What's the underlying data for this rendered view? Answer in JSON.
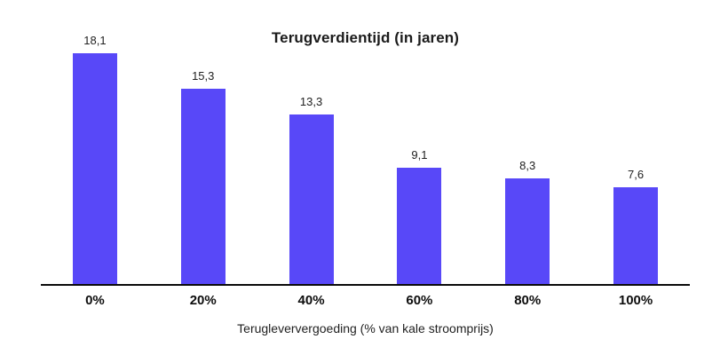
{
  "chart_data": {
    "type": "bar",
    "title": "Terugverdientijd (in jaren)",
    "categories": [
      "0%",
      "20%",
      "40%",
      "60%",
      "80%",
      "100%"
    ],
    "values": [
      18.1,
      15.3,
      13.3,
      9.1,
      8.3,
      7.6
    ],
    "value_labels": [
      "18,1",
      "15,3",
      "13,3",
      "9,1",
      "8,3",
      "7,6"
    ],
    "xlabel": "Terugleververgoeding (% van kale stroomprijs)",
    "ylabel": "",
    "ylim": [
      0,
      18.1
    ],
    "grid": false,
    "legend": "none",
    "bar_color": "#5848F8",
    "axis_color": "#0a0a0a",
    "value_label_color": "#212121"
  }
}
